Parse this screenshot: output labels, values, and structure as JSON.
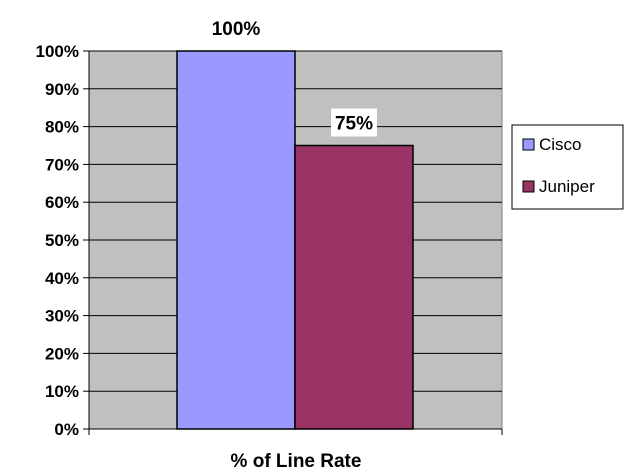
{
  "chart_data": {
    "type": "bar",
    "categories": [
      "% of Line Rate"
    ],
    "series": [
      {
        "name": "Cisco",
        "values": [
          100
        ],
        "color": "#9999ff",
        "label": "100%"
      },
      {
        "name": "Juniper",
        "values": [
          75
        ],
        "color": "#993366",
        "label": "75%"
      }
    ],
    "title": "",
    "xlabel": "% of Line Rate",
    "ylabel": "",
    "ylim": [
      0,
      100
    ],
    "yticks": [
      "0%",
      "10%",
      "20%",
      "30%",
      "40%",
      "50%",
      "60%",
      "70%",
      "80%",
      "90%",
      "100%"
    ],
    "grid": true,
    "plot_background": "#c0c0c0",
    "legend_position": "right"
  }
}
